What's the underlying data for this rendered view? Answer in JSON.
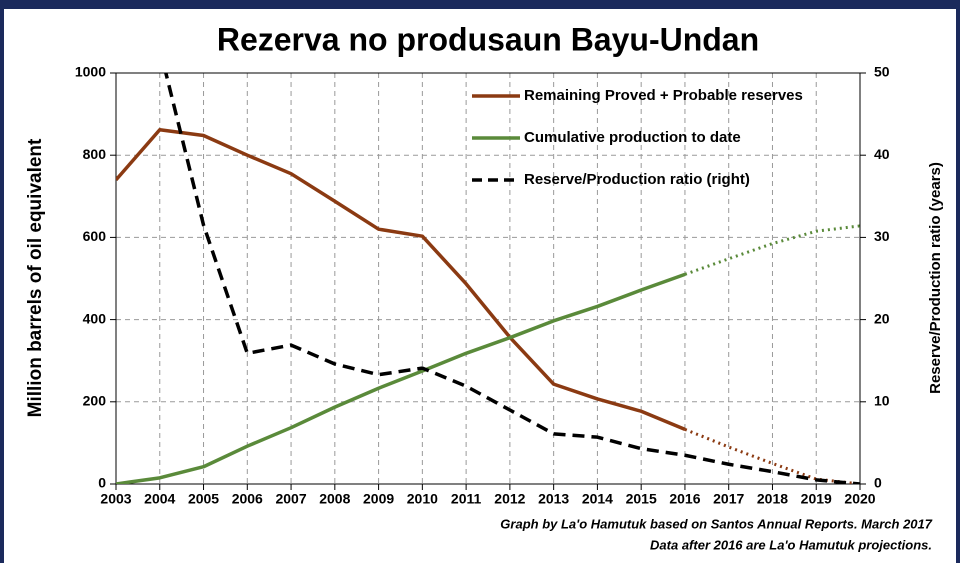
{
  "chart_data": {
    "type": "line",
    "title": "Rezerva no produsaun Bayu-Undan",
    "ylabel": "Million barrels of oil equivalent",
    "y2label": "Reserve/Production ratio  (years)",
    "annotations": [
      "Graph by La'o Hamutuk based on Santos Annual Reports. March 2017",
      "Data after 2016 are La'o Hamutuk projections."
    ],
    "categories": [
      "2003",
      "2004",
      "2005",
      "2006",
      "2007",
      "2008",
      "2009",
      "2010",
      "2011",
      "2012",
      "2013",
      "2014",
      "2015",
      "2016",
      "2017",
      "2018",
      "2019",
      "2020"
    ],
    "ylim": [
      0,
      1000
    ],
    "yticks": [
      0,
      200,
      400,
      600,
      800,
      1000
    ],
    "y2lim": [
      0,
      50
    ],
    "y2ticks": [
      0,
      10,
      20,
      30,
      40,
      50
    ],
    "grid": true,
    "legend": "upper right",
    "series": [
      {
        "name": "Remaining Proved + Probable reserves",
        "color": "#8b3a12",
        "dash": "solid",
        "values": [
          740,
          862,
          848,
          800,
          755,
          688,
          620,
          603,
          487,
          357,
          243,
          207,
          177,
          133,
          90,
          50,
          12,
          0
        ],
        "projected": [
          false,
          false,
          false,
          false,
          false,
          false,
          false,
          false,
          false,
          false,
          false,
          false,
          false,
          false,
          true,
          true,
          true,
          true
        ]
      },
      {
        "name": "Cumulative production to date",
        "color": "#5a8a3a",
        "dash": "solid",
        "values": [
          0,
          15,
          42,
          92,
          137,
          187,
          233,
          275,
          318,
          356,
          397,
          432,
          472,
          510,
          548,
          585,
          615,
          628
        ],
        "projected": [
          false,
          false,
          false,
          false,
          false,
          false,
          false,
          false,
          false,
          false,
          false,
          false,
          false,
          false,
          true,
          true,
          true,
          true
        ]
      },
      {
        "name": "Reserve/Production ratio (right)",
        "color": "#000000",
        "dash": "dashed",
        "axis": "y2",
        "values": [
          null,
          53,
          31.5,
          15.9,
          16.9,
          14.6,
          13.3,
          14.1,
          11.9,
          9,
          6.1,
          5.7,
          4.3,
          3.5,
          2.4,
          1.5,
          0.5,
          0
        ]
      }
    ]
  }
}
